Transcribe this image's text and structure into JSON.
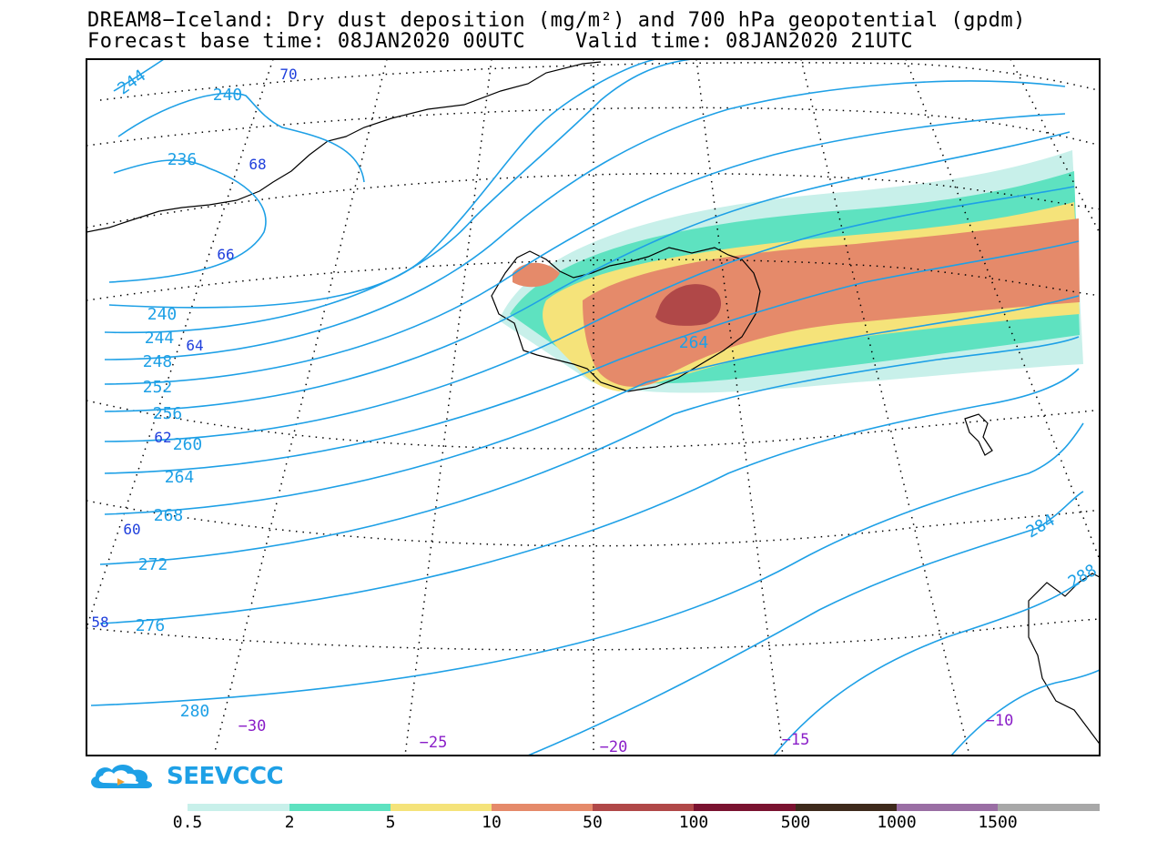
{
  "header": {
    "title_line1": "DREAM8−Iceland: Dry dust deposition (mg/m²) and 700 hPa geopotential (gpdm)",
    "title_line2": "Forecast base time: 08JAN2020 00UTC    Valid time: 08JAN2020 21UTC"
  },
  "map": {
    "contour_labels": [
      "244",
      "240",
      "236",
      "240",
      "244",
      "248",
      "252",
      "256",
      "260",
      "264",
      "268",
      "272",
      "276",
      "280",
      "264",
      "284",
      "288"
    ],
    "lat_labels": [
      "70",
      "68",
      "66",
      "64",
      "62",
      "60",
      "58"
    ],
    "lon_labels": [
      "−30",
      "−25",
      "−20",
      "−15",
      "−10"
    ],
    "colors": {
      "contour": "#1ea0e6",
      "lat_label": "#1f3fdc",
      "lon_label": "#8a1ec8"
    }
  },
  "logo": {
    "text": "SEEVCCC"
  },
  "colorbar": {
    "ticks": [
      "0.5",
      "2",
      "5",
      "10",
      "50",
      "100",
      "500",
      "1000",
      "1500"
    ],
    "colors": [
      "#c8f0ea",
      "#5ee2c0",
      "#f5e37a",
      "#e58a6a",
      "#b04848",
      "#7a1230",
      "#3e2a1c",
      "#9a6ea4",
      "#a8a8a8"
    ]
  }
}
